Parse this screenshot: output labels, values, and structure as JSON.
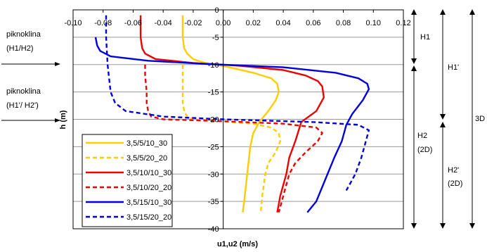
{
  "chart_data": {
    "type": "line",
    "title": "",
    "xlabel": "u1,u2 (m/s)",
    "ylabel": "h (m)",
    "xlim": [
      -0.1,
      0.12
    ],
    "ylim": [
      -40,
      0
    ],
    "x_ticks": [
      "-0.10",
      "-0.08",
      "-0.06",
      "-0.04",
      "-0.02",
      "0.00",
      "0.02",
      "0.04",
      "0.06",
      "0.08",
      "0.10",
      "0.12"
    ],
    "x_tick_values": [
      -0.1,
      -0.08,
      -0.06,
      -0.04,
      -0.02,
      0.0,
      0.02,
      0.04,
      0.06,
      0.08,
      0.1,
      0.12
    ],
    "y_ticks": [
      "0",
      "-5",
      "-10",
      "-15",
      "-20",
      "-25",
      "-30",
      "-35",
      "-40"
    ],
    "y_tick_values": [
      0,
      -5,
      -10,
      -15,
      -20,
      -25,
      -30,
      -35,
      -40
    ],
    "grid": "horizontal",
    "legend_position": "bottom-left",
    "series": [
      {
        "name": "3,5/5/10_30",
        "color": "#ffcc00",
        "dash": "solid",
        "x": [
          -0.027,
          -0.027,
          -0.026,
          -0.024,
          -0.02,
          -0.012,
          0.004,
          0.02,
          0.032,
          0.036,
          0.037,
          0.035,
          0.03,
          0.024,
          0.02,
          0.018,
          0.016,
          0.014,
          0.013
        ],
        "y": [
          -1,
          -5,
          -7,
          -8,
          -9,
          -9.7,
          -10.5,
          -11.5,
          -12.5,
          -13.5,
          -15,
          -16.5,
          -18.5,
          -20.5,
          -22.5,
          -25,
          -30,
          -35,
          -37
        ]
      },
      {
        "name": "3,5/5/20_20",
        "color": "#ffcc00",
        "dash": "dashed",
        "x": [
          -0.027,
          -0.027,
          -0.027,
          -0.027,
          -0.026,
          -0.024,
          -0.02,
          -0.005,
          0.02,
          0.032,
          0.037,
          0.038,
          0.035,
          0.03,
          0.028,
          0.026,
          0.025
        ],
        "y": [
          -10,
          -12,
          -15,
          -17,
          -18.5,
          -19.5,
          -20,
          -20.3,
          -20.8,
          -21.5,
          -22.5,
          -24,
          -26,
          -28,
          -30,
          -34,
          -37
        ]
      },
      {
        "name": "3,5/10/10_30",
        "color": "#ee0000",
        "dash": "solid",
        "x": [
          -0.055,
          -0.055,
          -0.054,
          -0.052,
          -0.045,
          -0.02,
          0.01,
          0.04,
          0.055,
          0.063,
          0.066,
          0.067,
          0.062,
          0.052,
          0.048,
          0.044,
          0.042,
          0.038,
          0.036
        ],
        "y": [
          -1,
          -5,
          -7,
          -8,
          -9,
          -9.7,
          -10.2,
          -11,
          -12,
          -13,
          -14,
          -16,
          -18.5,
          -20.5,
          -24,
          -27,
          -30,
          -34,
          -37
        ]
      },
      {
        "name": "3,5/10/20_20",
        "color": "#ee0000",
        "dash": "dashed",
        "x": [
          -0.052,
          -0.052,
          -0.051,
          -0.051,
          -0.05,
          -0.048,
          -0.04,
          -0.005,
          0.04,
          0.062,
          0.066,
          0.063,
          0.055,
          0.048,
          0.044,
          0.04,
          0.037
        ],
        "y": [
          -10,
          -12,
          -15,
          -17,
          -18.5,
          -19.5,
          -20,
          -20.3,
          -20.8,
          -21.5,
          -22.5,
          -24,
          -26,
          -28,
          -30,
          -34,
          -37
        ]
      },
      {
        "name": "3,5/15/10_30",
        "color": "#0000dd",
        "dash": "solid",
        "x": [
          -0.085,
          -0.084,
          -0.082,
          -0.075,
          -0.05,
          -0.01,
          0.04,
          0.075,
          0.09,
          0.096,
          0.097,
          0.093,
          0.086,
          0.082,
          0.079,
          0.074,
          0.068,
          0.062,
          0.056
        ],
        "y": [
          -5,
          -6.5,
          -7.5,
          -8.5,
          -9.3,
          -9.9,
          -10.5,
          -11.5,
          -12.5,
          -13.5,
          -14.5,
          -16.5,
          -19,
          -21,
          -24,
          -27,
          -31,
          -35,
          -37
        ]
      },
      {
        "name": "3,5/15/20_20",
        "color": "#0000dd",
        "dash": "dashed",
        "x": [
          -0.078,
          -0.078,
          -0.077,
          -0.075,
          -0.072,
          -0.065,
          -0.04,
          0.0,
          0.06,
          0.09,
          0.097,
          0.095,
          0.092,
          0.088,
          0.082
        ],
        "y": [
          -1,
          -5,
          -10,
          -15,
          -17,
          -18.5,
          -19.5,
          -20,
          -20.5,
          -21,
          -22,
          -24,
          -27,
          -30,
          -33
        ]
      }
    ],
    "annotations": {
      "left_top": [
        "piknoklina",
        "(H1/H2)"
      ],
      "left_bottom": [
        "piknoklina",
        "(H1'/ H2')"
      ],
      "right_labels": {
        "h1": "H1",
        "h1p": "H1'",
        "h2": "H2",
        "h2_sub": "(2D)",
        "h2p": "H2'",
        "h2p_sub": "(2D)",
        "three_d": "3D"
      }
    }
  }
}
